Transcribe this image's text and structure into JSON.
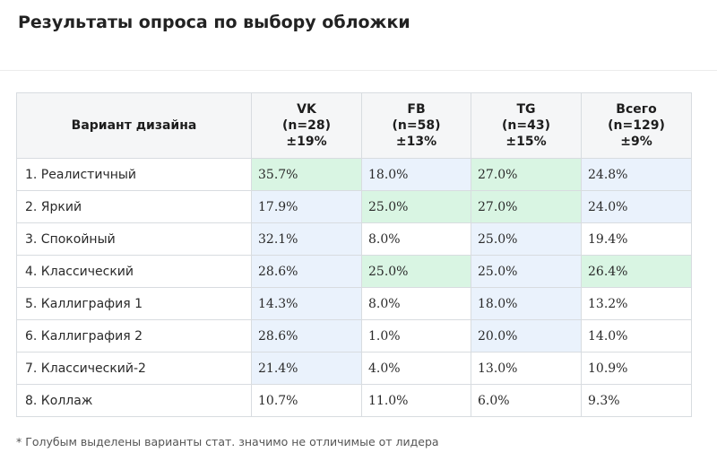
{
  "title": "Результаты опроса по выбору обложки",
  "colors": {
    "green": "#d9f5e3",
    "blue": "#eaf2fc",
    "plain": "#ffffff",
    "header_bg": "#f5f6f7",
    "border": "#d8dce0"
  },
  "table": {
    "headers": [
      {
        "lines": [
          "Вариант дизайна"
        ]
      },
      {
        "lines": [
          "VK",
          "(n=28)",
          "±19%"
        ]
      },
      {
        "lines": [
          "FB",
          "(n=58)",
          "±13%"
        ]
      },
      {
        "lines": [
          "TG",
          "(n=43)",
          "±15%"
        ]
      },
      {
        "lines": [
          "Всего",
          "(n=129)",
          "±9%"
        ]
      }
    ],
    "rows": [
      {
        "label": "1. Реалистичный",
        "values": [
          "35.7%",
          "18.0%",
          "27.0%",
          "24.8%"
        ],
        "highlight": [
          "green",
          "blue",
          "green",
          "blue"
        ]
      },
      {
        "label": "2. Яркий",
        "values": [
          "17.9%",
          "25.0%",
          "27.0%",
          "24.0%"
        ],
        "highlight": [
          "blue",
          "green",
          "green",
          "blue"
        ]
      },
      {
        "label": "3. Спокойный",
        "values": [
          "32.1%",
          "8.0%",
          "25.0%",
          "19.4%"
        ],
        "highlight": [
          "blue",
          "plain",
          "blue",
          "plain"
        ]
      },
      {
        "label": "4. Классический",
        "values": [
          "28.6%",
          "25.0%",
          "25.0%",
          "26.4%"
        ],
        "highlight": [
          "blue",
          "green",
          "blue",
          "green"
        ]
      },
      {
        "label": "5. Каллиграфия 1",
        "values": [
          "14.3%",
          "8.0%",
          "18.0%",
          "13.2%"
        ],
        "highlight": [
          "blue",
          "plain",
          "blue",
          "plain"
        ]
      },
      {
        "label": "6. Каллиграфия 2",
        "values": [
          "28.6%",
          "1.0%",
          "20.0%",
          "14.0%"
        ],
        "highlight": [
          "blue",
          "plain",
          "blue",
          "plain"
        ]
      },
      {
        "label": "7. Классический-2",
        "values": [
          "21.4%",
          "4.0%",
          "13.0%",
          "10.9%"
        ],
        "highlight": [
          "blue",
          "plain",
          "plain",
          "plain"
        ]
      },
      {
        "label": "8. Коллаж",
        "values": [
          "10.7%",
          "11.0%",
          "6.0%",
          "9.3%"
        ],
        "highlight": [
          "plain",
          "plain",
          "plain",
          "plain"
        ]
      }
    ]
  },
  "footnote": "* Голубым выделены варианты стат. значимо не отличимые от лидера"
}
